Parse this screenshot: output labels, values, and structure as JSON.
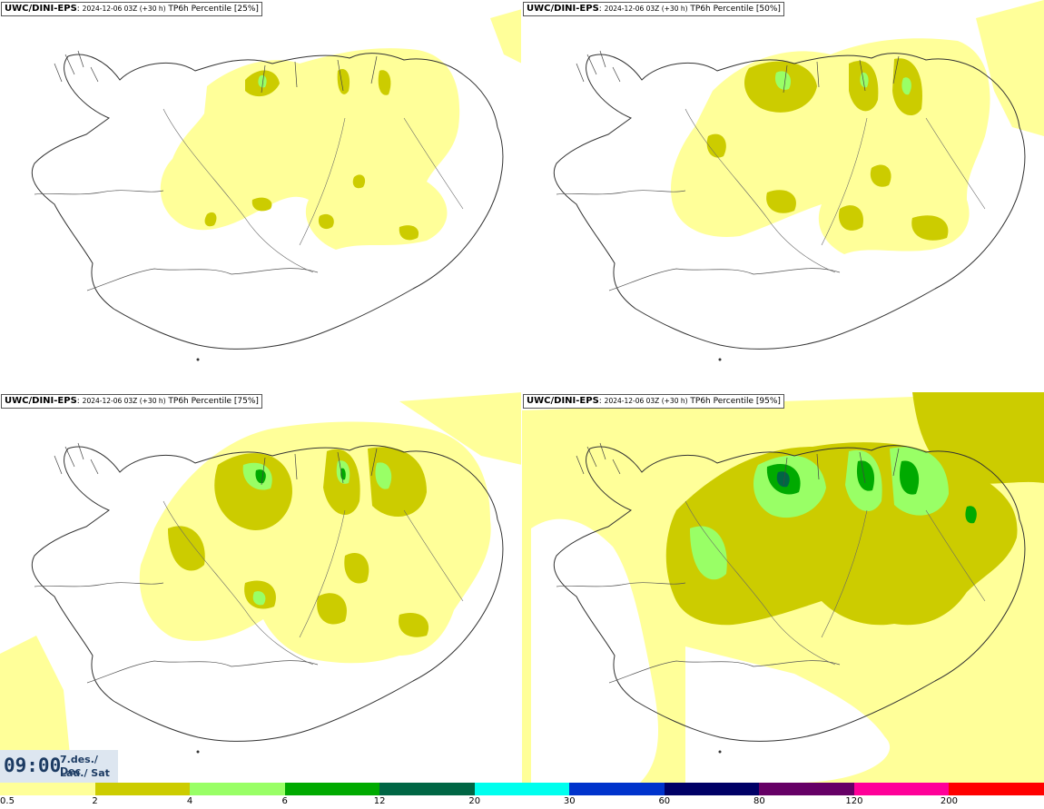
{
  "panels": [
    {
      "source": "UWC/DINI-EPS",
      "run": "2024-12-06 03Z (+30 h)",
      "product": "TP6h Percentile [25%]",
      "percentile": 25
    },
    {
      "source": "UWC/DINI-EPS",
      "run": "2024-12-06 03Z (+30 h)",
      "product": "TP6h Percentile [50%]",
      "percentile": 50
    },
    {
      "source": "UWC/DINI-EPS",
      "run": "2024-12-06 03Z (+30 h)",
      "product": "TP6h Percentile [75%]",
      "percentile": 75
    },
    {
      "source": "UWC/DINI-EPS",
      "run": "2024-12-06 03Z (+30 h)",
      "product": "TP6h Percentile [95%]",
      "percentile": 95
    }
  ],
  "valid_time": {
    "clock": "09:00",
    "date_line": "7.des./ Dec",
    "day_line": "Lau./ Sat"
  },
  "legend": {
    "colors": [
      "#ffff99",
      "#cccc00",
      "#99ff66",
      "#00aa00",
      "#006644",
      "#00ffee",
      "#0033cc",
      "#000066",
      "#660066",
      "#ff0099",
      "#ff0000"
    ],
    "ticks": [
      "0.5",
      "2",
      "4",
      "6",
      "12",
      "20",
      "30",
      "60",
      "80",
      "120",
      "200"
    ]
  },
  "colors": {
    "land_outline": "#333333",
    "light": "#ffff99",
    "mid": "#cccc00",
    "high": "#99ff66",
    "heavy": "#00aa00",
    "extreme": "#006644"
  }
}
